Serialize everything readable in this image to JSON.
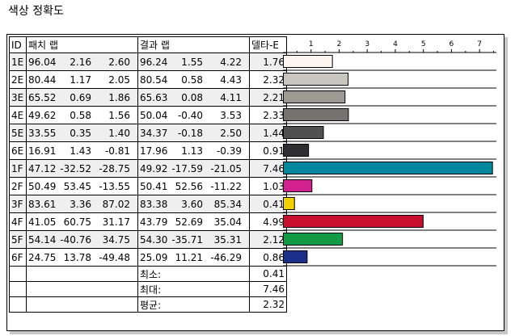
{
  "title": "색상 정확도",
  "headers": {
    "id": "ID",
    "patch": "패치 랩",
    "result": "결과 랩",
    "delta": "델타-E"
  },
  "rows": [
    {
      "id": "1E",
      "p": [
        "96.04",
        "2.16",
        "2.60"
      ],
      "r": [
        "96.24",
        "1.55",
        "4.22"
      ],
      "de": "1.76",
      "color": "#fdf6f0"
    },
    {
      "id": "2E",
      "p": [
        "80.44",
        "1.17",
        "2.05"
      ],
      "r": [
        "80.54",
        "0.58",
        "4.43"
      ],
      "de": "2.32",
      "color": "#c9c6c0"
    },
    {
      "id": "3E",
      "p": [
        "65.52",
        "0.69",
        "1.86"
      ],
      "r": [
        "65.63",
        "0.08",
        "4.11"
      ],
      "de": "2.21",
      "color": "#9c9a95"
    },
    {
      "id": "4E",
      "p": [
        "49.62",
        "0.58",
        "1.56"
      ],
      "r": [
        "50.04",
        "-0.40",
        "3.53"
      ],
      "de": "2.33",
      "color": "#74736f"
    },
    {
      "id": "5E",
      "p": [
        "33.55",
        "0.35",
        "1.40"
      ],
      "r": [
        "34.37",
        "-0.18",
        "2.50"
      ],
      "de": "1.44",
      "color": "#505050"
    },
    {
      "id": "6E",
      "p": [
        "16.91",
        "1.43",
        "-0.81"
      ],
      "r": [
        "17.96",
        "1.13",
        "-0.39"
      ],
      "de": "0.91",
      "color": "#2e2d2f"
    },
    {
      "id": "1F",
      "p": [
        "47.12",
        "-32.52",
        "-28.75"
      ],
      "r": [
        "49.92",
        "-17.59",
        "-21.05"
      ],
      "de": "7.46",
      "color": "#00869e"
    },
    {
      "id": "2F",
      "p": [
        "50.49",
        "53.45",
        "-13.55"
      ],
      "r": [
        "50.41",
        "52.56",
        "-11.22"
      ],
      "de": "1.03",
      "color": "#d2208f"
    },
    {
      "id": "3F",
      "p": [
        "83.61",
        "3.36",
        "87.02"
      ],
      "r": [
        "83.38",
        "3.60",
        "85.34"
      ],
      "de": "0.41",
      "color": "#f2d000"
    },
    {
      "id": "4F",
      "p": [
        "41.05",
        "60.75",
        "31.17"
      ],
      "r": [
        "43.79",
        "52.69",
        "35.04"
      ],
      "de": "4.99",
      "color": "#c8102e"
    },
    {
      "id": "5F",
      "p": [
        "54.14",
        "-40.76",
        "34.75"
      ],
      "r": [
        "54.30",
        "-35.71",
        "35.31"
      ],
      "de": "2.12",
      "color": "#129a45"
    },
    {
      "id": "6F",
      "p": [
        "24.75",
        "13.78",
        "-49.48"
      ],
      "r": [
        "25.09",
        "11.21",
        "-46.29"
      ],
      "de": "0.86",
      "color": "#1a2f8a"
    }
  ],
  "summary": [
    {
      "label": "최소:",
      "value": "0.41"
    },
    {
      "label": "최대:",
      "value": "7.46"
    },
    {
      "label": "평균:",
      "value": "2.32"
    }
  ],
  "chart_data": {
    "type": "bar",
    "orientation": "horizontal",
    "categories": [
      "1E",
      "2E",
      "3E",
      "4E",
      "5E",
      "6E",
      "1F",
      "2F",
      "3F",
      "4F",
      "5F",
      "6F"
    ],
    "values": [
      1.76,
      2.32,
      2.21,
      2.33,
      1.44,
      0.91,
      7.46,
      1.03,
      0.41,
      4.99,
      2.12,
      0.86
    ],
    "xlim": [
      0,
      7.6
    ],
    "ticks": [
      "1",
      "2",
      "3",
      "4",
      "5",
      "6",
      "7"
    ]
  }
}
